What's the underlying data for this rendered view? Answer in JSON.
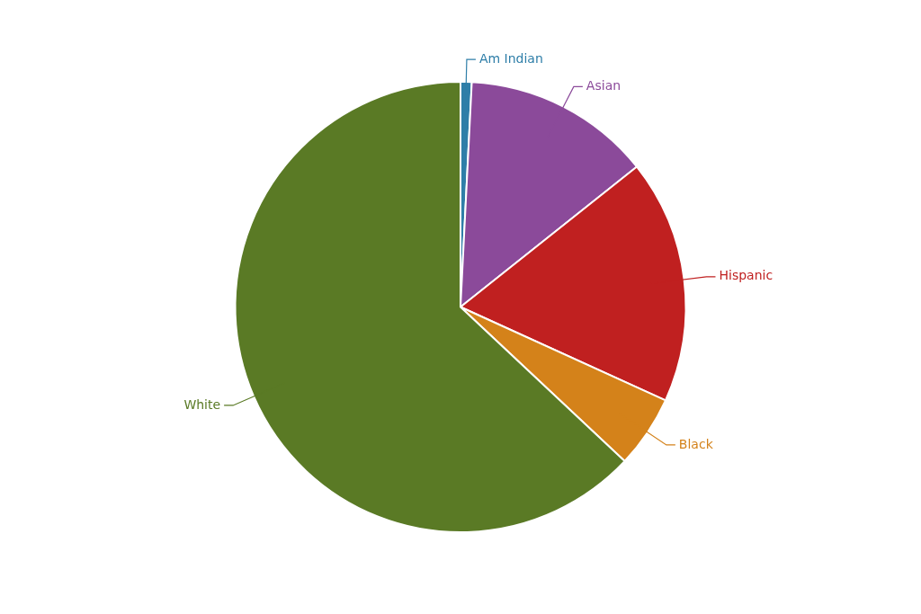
{
  "chart_data": {
    "type": "pie",
    "categories": [
      "Am Indian",
      "Asian",
      "Hispanic",
      "Black",
      "White"
    ],
    "values": [
      0.8,
      13.5,
      17.5,
      5.2,
      63.0
    ],
    "colors": [
      "#2e7ea8",
      "#8b4a9a",
      "#c02020",
      "#d4821a",
      "#5a7a25"
    ]
  }
}
